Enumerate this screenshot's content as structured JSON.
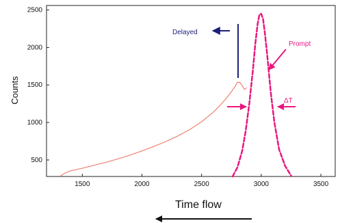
{
  "chart_data": {
    "type": "line",
    "title": "",
    "xlabel": "",
    "ylabel": "Counts",
    "xlim": [
      1200,
      3620
    ],
    "ylim": [
      280,
      2560
    ],
    "x_ticks": [
      1500,
      2000,
      2500,
      3000,
      3500
    ],
    "y_ticks": [
      500,
      1000,
      1500,
      2000,
      2500
    ],
    "grid": false,
    "series": [
      {
        "style": "solid",
        "color": "#f08070",
        "x": [
          1320,
          1360,
          1400,
          1500,
          1600,
          1700,
          1800,
          1900,
          2000,
          2100,
          2200,
          2300,
          2400,
          2500,
          2600,
          2650,
          2700,
          2750,
          2780,
          2800,
          2820,
          2840,
          2860,
          2875
        ],
        "y": [
          290,
          330,
          355,
          390,
          430,
          470,
          515,
          565,
          620,
          680,
          745,
          820,
          905,
          1010,
          1140,
          1220,
          1310,
          1410,
          1480,
          1535,
          1535,
          1490,
          1440,
          1460
        ]
      },
      {
        "style": "dashed",
        "color": "#e8167f",
        "x": [
          2760,
          2800,
          2840,
          2870,
          2900,
          2930,
          2950,
          2970,
          2985,
          3000,
          3015,
          3030,
          3050,
          3080,
          3110,
          3150,
          3200,
          3250
        ],
        "y": [
          280,
          400,
          620,
          890,
          1250,
          1700,
          2050,
          2320,
          2440,
          2450,
          2380,
          2200,
          1900,
          1400,
          1000,
          640,
          420,
          290
        ]
      }
    ],
    "annotations": {
      "delayed": {
        "text": "Delayed",
        "color": "#1c1f78"
      },
      "prompt": {
        "text": "Prompt",
        "color": "#e8167f"
      },
      "delta_t": {
        "text": "ΔT",
        "color": "#e8167f"
      }
    }
  },
  "footer": {
    "time_flow_label": "Time flow"
  }
}
